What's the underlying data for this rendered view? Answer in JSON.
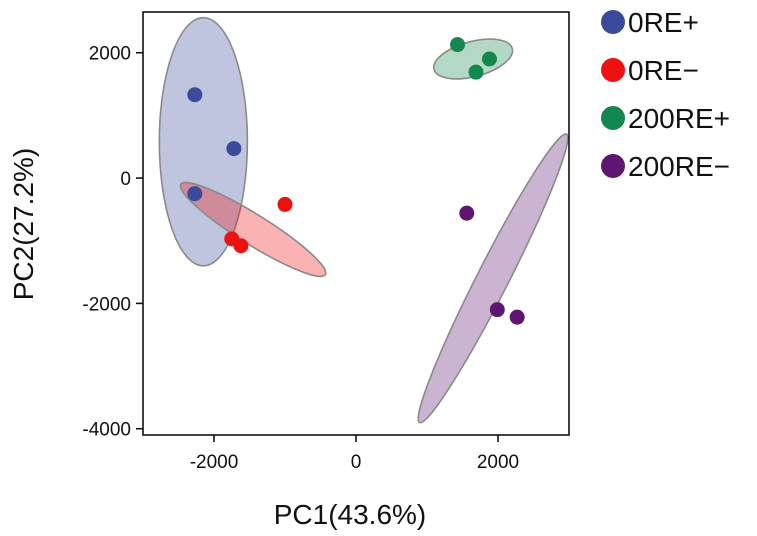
{
  "chart_data": {
    "type": "scatter",
    "title": "",
    "xlabel": "PC1(43.6%)",
    "ylabel": "PC2(27.2%)",
    "xlim": [
      -3000,
      3000
    ],
    "ylim": [
      -4100,
      2650
    ],
    "xticks": [
      -2000,
      0,
      2000
    ],
    "xtick_labels": [
      "-2000",
      "0",
      "2000"
    ],
    "yticks": [
      2000,
      0,
      -2000,
      -4000
    ],
    "ytick_labels": [
      "2000",
      "0",
      "-2000",
      "-4000"
    ],
    "grid": false,
    "legend_position": "right",
    "series": [
      {
        "name": "0RE+",
        "color": "#3b4a9a",
        "points": [
          [
            -2270,
            1330
          ],
          [
            -1720,
            470
          ],
          [
            -2270,
            -250
          ]
        ],
        "ellipse": {
          "cx": -2150,
          "cy": 580,
          "rx": 620,
          "ry": 1980,
          "angle": 0
        }
      },
      {
        "name": "0RE−",
        "color": "#ee1111",
        "points": [
          [
            -1000,
            -420
          ],
          [
            -1750,
            -970
          ],
          [
            -1620,
            -1080
          ]
        ],
        "ellipse": {
          "cx": -1450,
          "cy": -820,
          "rx": 1200,
          "ry": 240,
          "angle": 32
        }
      },
      {
        "name": "200RE+",
        "color": "#14874e",
        "points": [
          [
            1430,
            2130
          ],
          [
            1880,
            1900
          ],
          [
            1690,
            1690
          ]
        ],
        "ellipse": {
          "cx": 1650,
          "cy": 1900,
          "rx": 570,
          "ry": 280,
          "angle": -15
        }
      },
      {
        "name": "200RE−",
        "color": "#5e1670",
        "points": [
          [
            1560,
            -560
          ],
          [
            1990,
            -2100
          ],
          [
            2270,
            -2220
          ]
        ],
        "ellipse": {
          "cx": 1930,
          "cy": -1600,
          "rx": 2280,
          "ry": 250,
          "angle": -63
        }
      }
    ]
  }
}
